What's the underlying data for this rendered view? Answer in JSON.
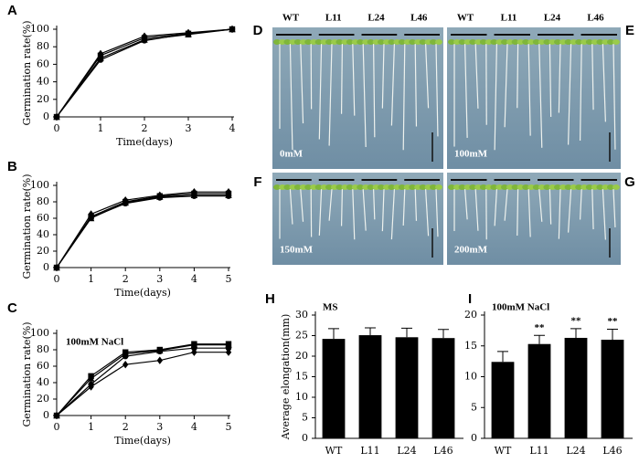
{
  "chart_data": [
    {
      "type": "line",
      "panel_label": "A",
      "xlabel": "Time(days)",
      "ylabel": "Germination rate(%)",
      "x": [
        0,
        1,
        2,
        3,
        4
      ],
      "xlim": [
        0,
        4
      ],
      "xticks": [
        0,
        1,
        2,
        3,
        4
      ],
      "ylim": [
        0,
        100
      ],
      "yticks": [
        0,
        20,
        40,
        60,
        80,
        100
      ],
      "series": [
        {
          "color": "#000000",
          "marker": "diamond",
          "values": [
            0,
            72,
            92,
            96,
            100
          ]
        },
        {
          "color": "#000000",
          "marker": "square",
          "values": [
            0,
            70,
            90,
            95,
            100
          ]
        },
        {
          "color": "#000000",
          "marker": "triangle",
          "values": [
            0,
            67,
            88,
            94,
            100
          ]
        },
        {
          "color": "#000000",
          "marker": "circle",
          "values": [
            0,
            65,
            87,
            95,
            100
          ]
        }
      ]
    },
    {
      "type": "line",
      "panel_label": "B",
      "xlabel": "Time(days)",
      "ylabel": "Germination rate(%)",
      "x": [
        0,
        1,
        2,
        3,
        4,
        5
      ],
      "xlim": [
        0,
        5
      ],
      "xticks": [
        0,
        1,
        2,
        3,
        4,
        5
      ],
      "ylim": [
        0,
        100
      ],
      "yticks": [
        0,
        20,
        40,
        60,
        80,
        100
      ],
      "series": [
        {
          "color": "#000000",
          "marker": "diamond",
          "values": [
            0,
            65,
            82,
            88,
            92,
            92
          ]
        },
        {
          "color": "#000000",
          "marker": "square",
          "values": [
            0,
            62,
            80,
            87,
            90,
            90
          ]
        },
        {
          "color": "#000000",
          "marker": "triangle",
          "values": [
            0,
            60,
            79,
            86,
            88,
            88
          ]
        },
        {
          "color": "#000000",
          "marker": "circle",
          "values": [
            0,
            61,
            78,
            85,
            87,
            87
          ]
        }
      ]
    },
    {
      "type": "line",
      "panel_label": "C",
      "annotation": "100mM NaCl",
      "xlabel": "Time(days)",
      "ylabel": "Germination rate(%)",
      "x": [
        0,
        1,
        2,
        3,
        4,
        5
      ],
      "xlim": [
        0,
        5
      ],
      "xticks": [
        0,
        1,
        2,
        3,
        4,
        5
      ],
      "ylim": [
        0,
        100
      ],
      "yticks": [
        0,
        20,
        40,
        60,
        80,
        100
      ],
      "series": [
        {
          "color": "#000000",
          "marker": "square",
          "values": [
            0,
            48,
            77,
            80,
            87,
            87
          ]
        },
        {
          "color": "#000000",
          "marker": "triangle",
          "values": [
            0,
            45,
            75,
            79,
            86,
            86
          ]
        },
        {
          "color": "#000000",
          "marker": "circle",
          "values": [
            0,
            38,
            72,
            78,
            82,
            82
          ]
        },
        {
          "color": "#000000",
          "marker": "diamond",
          "values": [
            0,
            35,
            62,
            67,
            77,
            77
          ]
        }
      ]
    },
    {
      "type": "bar",
      "panel_label": "H",
      "annotation": "MS",
      "ylabel": "Average elongation(mm)",
      "categories": [
        "WT",
        "L11",
        "L24",
        "L46"
      ],
      "values": [
        24.2,
        25.1,
        24.6,
        24.4
      ],
      "errors": [
        2.5,
        1.8,
        2.2,
        2.1
      ],
      "color": "#000000",
      "ylim": [
        0,
        30
      ],
      "yticks": [
        0,
        5,
        10,
        15,
        20,
        25,
        30
      ]
    },
    {
      "type": "bar",
      "panel_label": "I",
      "annotation": "100mM NaCl",
      "categories": [
        "WT",
        "L11",
        "L24",
        "L46"
      ],
      "values": [
        12.4,
        15.3,
        16.3,
        16
      ],
      "errors": [
        1.7,
        1.4,
        1.5,
        1.7
      ],
      "significance": [
        null,
        "**",
        "**",
        "**"
      ],
      "color": "#000000",
      "ylim": [
        0,
        20
      ],
      "yticks": [
        0,
        5,
        10,
        15,
        20
      ]
    }
  ],
  "photo_panels": [
    {
      "label": "D",
      "genotypes": [
        "WT",
        "L11",
        "L24",
        "L46"
      ],
      "treatment": "0mM"
    },
    {
      "label": "E",
      "genotypes": [
        "WT",
        "L11",
        "L24",
        "L46"
      ],
      "treatment": "100mM"
    },
    {
      "label": "F",
      "treatment": "150mM"
    },
    {
      "label": "G",
      "treatment": "200mM"
    }
  ]
}
